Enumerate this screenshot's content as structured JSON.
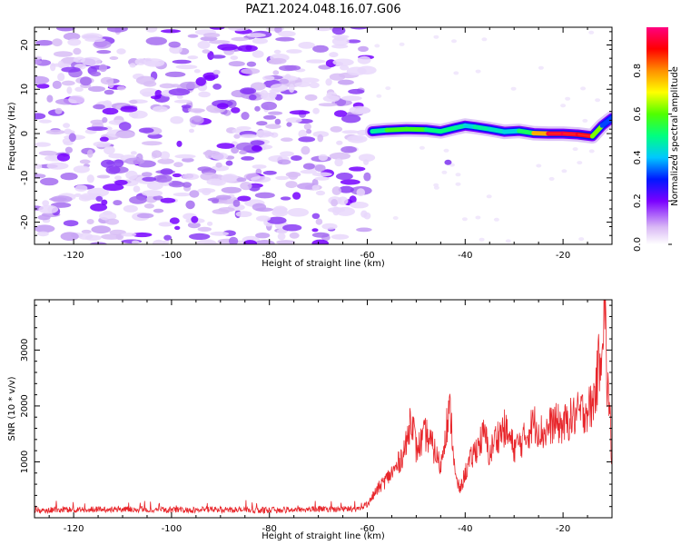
{
  "title": "PAZ1.2024.048.16.07.G06",
  "chart_data": [
    {
      "type": "heatmap",
      "xlabel": "Height of straight line (km)",
      "ylabel": "Frequency (Hz)",
      "xlim": [
        -128,
        -10
      ],
      "ylim": [
        -25,
        24
      ],
      "xticks": [
        -120,
        -100,
        -80,
        -60,
        -40,
        -20
      ],
      "yticks": [
        -20,
        -10,
        0,
        10,
        20
      ],
      "ridge": {
        "description_points_x": [
          -59,
          -56,
          -52,
          -48,
          -45,
          -42,
          -40,
          -38,
          -35,
          -32,
          -29,
          -26,
          -23,
          -20,
          -17,
          -14,
          -12,
          -10
        ],
        "frequency_hz": [
          0.5,
          0.8,
          1.0,
          0.9,
          0.5,
          1.3,
          1.8,
          1.5,
          1.0,
          0.4,
          0.6,
          0.1,
          0.0,
          0.0,
          -0.2,
          -0.6,
          1.8,
          3.5
        ],
        "amplitude": [
          0.4,
          0.55,
          0.6,
          0.55,
          0.45,
          0.55,
          0.4,
          0.45,
          0.5,
          0.4,
          0.45,
          0.6,
          0.95,
          0.95,
          0.95,
          0.9,
          0.35,
          0.3
        ]
      },
      "colorbar": {
        "label": "Normalized spectral amplitude",
        "range": [
          0,
          1
        ],
        "ticks": [
          "0.0",
          "0.2",
          "0.4",
          "0.6",
          "0.8"
        ]
      }
    },
    {
      "type": "line",
      "xlabel": "Height of straight line (km)",
      "ylabel": "SNR (10 * v/v)",
      "xlim": [
        -128,
        -10
      ],
      "ylim": [
        0,
        3900
      ],
      "xticks": [
        -120,
        -100,
        -80,
        -60,
        -40,
        -20
      ],
      "yticks": [
        1000,
        2000,
        3000
      ],
      "series": [
        {
          "color": "#e8262b",
          "x": [
            -128,
            -120,
            -110,
            -100,
            -90,
            -80,
            -70,
            -62,
            -60,
            -58,
            -56,
            -54,
            -52,
            -51,
            -50,
            -48,
            -46,
            -45,
            -44,
            -43,
            -42,
            -41,
            -40,
            -38,
            -36,
            -35,
            -34,
            -32,
            -30,
            -28,
            -26,
            -24,
            -22,
            -20,
            -18,
            -16,
            -14,
            -13,
            -12,
            -11.5,
            -11,
            -10.5,
            -10
          ],
          "y": [
            120,
            130,
            140,
            125,
            130,
            120,
            140,
            140,
            230,
            500,
            700,
            900,
            1300,
            1900,
            1200,
            1500,
            1150,
            900,
            1600,
            1900,
            700,
            500,
            800,
            1200,
            1500,
            1100,
            1400,
            1600,
            1250,
            1400,
            1700,
            1500,
            1700,
            1650,
            1800,
            1900,
            2000,
            2500,
            3300,
            3800,
            2400,
            2000,
            900
          ]
        }
      ]
    }
  ]
}
